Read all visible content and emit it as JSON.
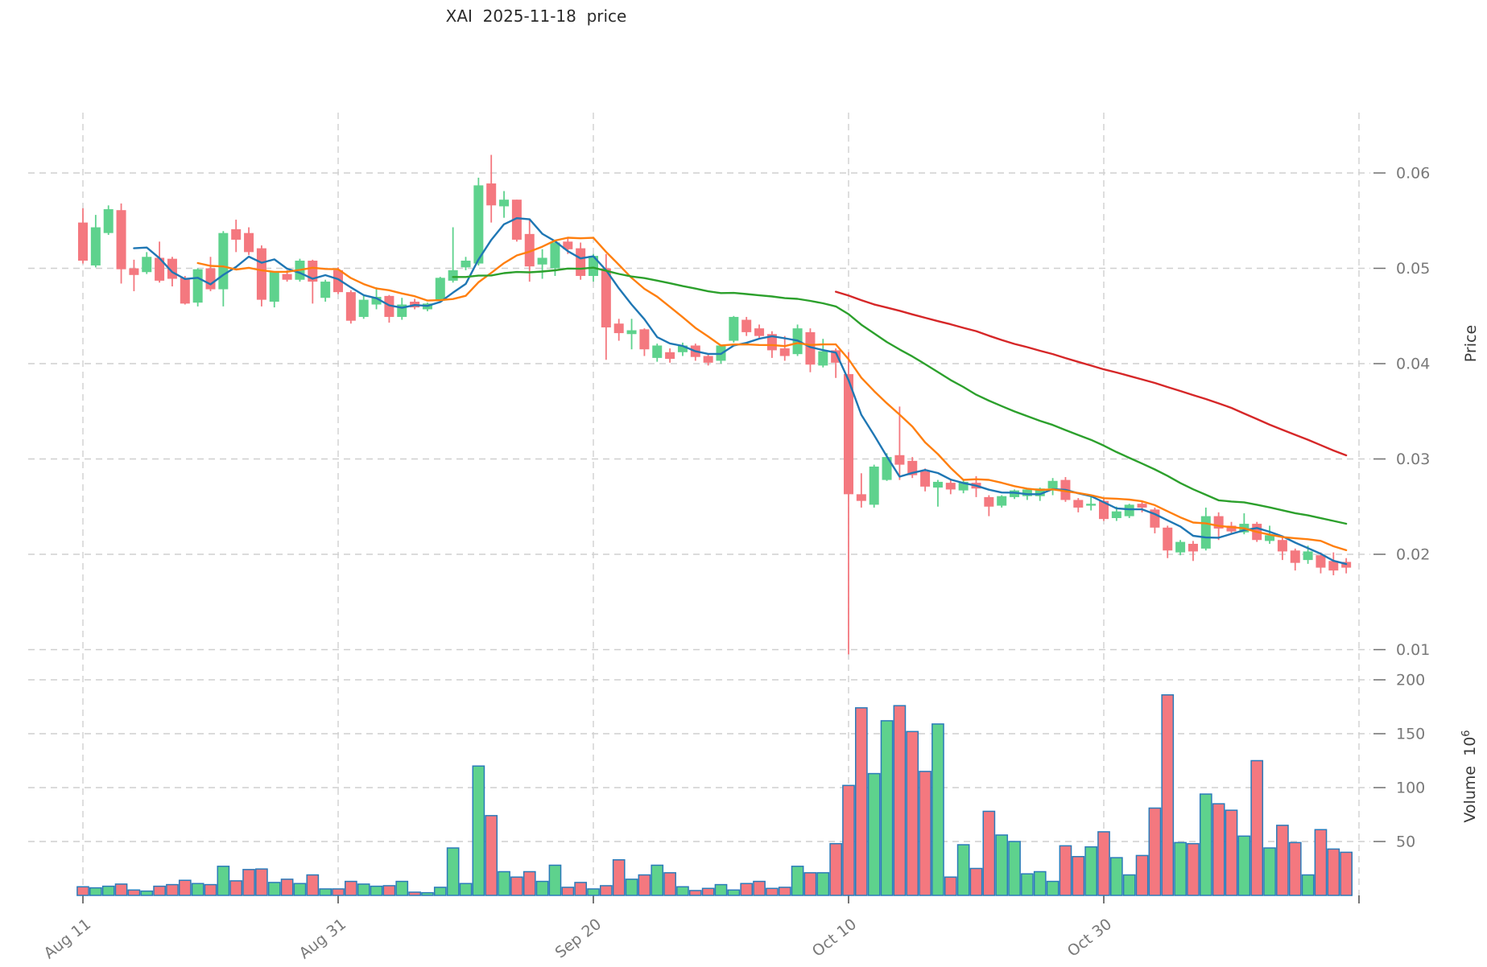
{
  "chart_data": {
    "type": "candlestick",
    "title": "XAI  2025-11-18  price",
    "x_axis": {
      "tick_labels": [
        "Aug 11",
        "Aug 31",
        "Sep 20",
        "Oct 10",
        "Oct 30"
      ],
      "tick_label_indices": [
        0,
        20,
        40,
        60,
        80
      ],
      "gridline_indices": [
        0,
        20,
        40,
        60,
        80,
        100
      ],
      "n_candles": 100,
      "label_rotation_deg": -38
    },
    "price_axis": {
      "label": "Price",
      "ticks": [
        0.06,
        0.05,
        0.04,
        0.03,
        0.02,
        0.01
      ],
      "range": [
        0.0089,
        0.0663
      ],
      "side": "right",
      "grid": true
    },
    "volume_axis": {
      "label_base": "Volume  10",
      "label_exponent": "6",
      "unit": "millions",
      "ticks": [
        200,
        150,
        100,
        50
      ],
      "range": [
        0,
        215
      ],
      "side": "right",
      "grid": true
    },
    "moving_averages": [
      {
        "window": 5,
        "color": "#1f77b4"
      },
      {
        "window": 10,
        "color": "#ff7f0e"
      },
      {
        "window": 30,
        "color": "#2ca02c"
      },
      {
        "window": 60,
        "color": "#d62728"
      }
    ],
    "style": {
      "up_color": "#5ed28d",
      "down_color": "#f4787f",
      "volume_edge_color": "#2b7bba",
      "grid_color": "#cfcfcf",
      "tick_label_color": "#797979",
      "axis_tick_color": "#6f6f6f",
      "title_color": "#2b2b2b",
      "background": "#ffffff"
    },
    "ohlcv_columns": [
      "open",
      "high",
      "low",
      "close",
      "volume_millions"
    ],
    "candles": [
      [
        0.0548,
        0.0563,
        0.0505,
        0.0508,
        8
      ],
      [
        0.0503,
        0.0556,
        0.0501,
        0.0543,
        7
      ],
      [
        0.0537,
        0.0566,
        0.0535,
        0.0562,
        8.5
      ],
      [
        0.0561,
        0.0568,
        0.0484,
        0.0499,
        10.5
      ],
      [
        0.05,
        0.0509,
        0.0476,
        0.0493,
        5
      ],
      [
        0.0496,
        0.0517,
        0.0494,
        0.0512,
        4
      ],
      [
        0.0511,
        0.0528,
        0.0485,
        0.0487,
        8.5
      ],
      [
        0.051,
        0.0512,
        0.0481,
        0.0489,
        10
      ],
      [
        0.049,
        0.0492,
        0.0462,
        0.0463,
        14
      ],
      [
        0.0464,
        0.05,
        0.046,
        0.0499,
        11
      ],
      [
        0.05,
        0.0512,
        0.0476,
        0.0478,
        10
      ],
      [
        0.0478,
        0.0539,
        0.046,
        0.0537,
        27
      ],
      [
        0.0541,
        0.0551,
        0.0517,
        0.053,
        13.5
      ],
      [
        0.0537,
        0.0543,
        0.0514,
        0.0517,
        24
      ],
      [
        0.0521,
        0.0524,
        0.046,
        0.0467,
        24.5
      ],
      [
        0.0465,
        0.0496,
        0.0459,
        0.0496,
        12
      ],
      [
        0.0494,
        0.0498,
        0.0486,
        0.0488,
        15
      ],
      [
        0.0488,
        0.051,
        0.0486,
        0.0508,
        11
      ],
      [
        0.0508,
        0.0509,
        0.0463,
        0.0486,
        19
      ],
      [
        0.0469,
        0.0488,
        0.0465,
        0.0486,
        6
      ],
      [
        0.0498,
        0.0501,
        0.0473,
        0.0475,
        6
      ],
      [
        0.0475,
        0.0477,
        0.0442,
        0.0445,
        13
      ],
      [
        0.0449,
        0.0471,
        0.0447,
        0.0467,
        10.5
      ],
      [
        0.0462,
        0.048,
        0.0457,
        0.047,
        8.5
      ],
      [
        0.0471,
        0.0472,
        0.0443,
        0.0449,
        9
      ],
      [
        0.0449,
        0.0469,
        0.0446,
        0.0462,
        13
      ],
      [
        0.0465,
        0.0468,
        0.0457,
        0.0459,
        3
      ],
      [
        0.0457,
        0.0464,
        0.0455,
        0.0463,
        2.5
      ],
      [
        0.0466,
        0.0491,
        0.0464,
        0.049,
        7.5
      ],
      [
        0.0487,
        0.0543,
        0.0485,
        0.0498,
        44
      ],
      [
        0.0501,
        0.0512,
        0.0498,
        0.0508,
        11
      ],
      [
        0.0505,
        0.0595,
        0.0503,
        0.0587,
        120
      ],
      [
        0.0589,
        0.0619,
        0.0548,
        0.0566,
        74
      ],
      [
        0.0565,
        0.0581,
        0.0553,
        0.0572,
        22
      ],
      [
        0.0572,
        0.0572,
        0.0528,
        0.053,
        17
      ],
      [
        0.0536,
        0.0551,
        0.0486,
        0.0502,
        22
      ],
      [
        0.0504,
        0.052,
        0.0489,
        0.0511,
        13
      ],
      [
        0.05,
        0.0528,
        0.0492,
        0.0527,
        28
      ],
      [
        0.0528,
        0.0532,
        0.0515,
        0.052,
        7.5
      ],
      [
        0.0521,
        0.0527,
        0.0488,
        0.0492,
        12
      ],
      [
        0.0492,
        0.0515,
        0.0486,
        0.0513,
        6
      ],
      [
        0.05,
        0.0515,
        0.0404,
        0.0438,
        9
      ],
      [
        0.0442,
        0.0447,
        0.0424,
        0.0432,
        33
      ],
      [
        0.0431,
        0.0447,
        0.0415,
        0.0435,
        15
      ],
      [
        0.0436,
        0.0437,
        0.0408,
        0.0415,
        19
      ],
      [
        0.0406,
        0.0421,
        0.0402,
        0.0419,
        28
      ],
      [
        0.0412,
        0.0416,
        0.0401,
        0.0405,
        21
      ],
      [
        0.0412,
        0.0422,
        0.0408,
        0.0419,
        8
      ],
      [
        0.0419,
        0.0421,
        0.0403,
        0.0407,
        4.5
      ],
      [
        0.0408,
        0.041,
        0.0398,
        0.0401,
        6.5
      ],
      [
        0.0403,
        0.042,
        0.04,
        0.0419,
        10
      ],
      [
        0.0424,
        0.045,
        0.0422,
        0.0449,
        5
      ],
      [
        0.0446,
        0.0449,
        0.0429,
        0.0433,
        11
      ],
      [
        0.0437,
        0.0441,
        0.0427,
        0.0429,
        13
      ],
      [
        0.0431,
        0.0434,
        0.0406,
        0.0414,
        6.5
      ],
      [
        0.0416,
        0.0429,
        0.0403,
        0.0408,
        7.5
      ],
      [
        0.041,
        0.0441,
        0.0408,
        0.0437,
        27
      ],
      [
        0.0433,
        0.0437,
        0.0391,
        0.0399,
        21
      ],
      [
        0.0398,
        0.0426,
        0.0396,
        0.0413,
        21
      ],
      [
        0.0414,
        0.0416,
        0.0385,
        0.0401,
        48
      ],
      [
        0.0389,
        0.0412,
        0.0095,
        0.0263,
        102
      ],
      [
        0.0263,
        0.0285,
        0.0249,
        0.0256,
        174
      ],
      [
        0.0252,
        0.0294,
        0.0249,
        0.0292,
        113
      ],
      [
        0.0278,
        0.0306,
        0.0277,
        0.0302,
        162
      ],
      [
        0.0304,
        0.0355,
        0.0278,
        0.0294,
        176
      ],
      [
        0.0298,
        0.0302,
        0.028,
        0.0283,
        152
      ],
      [
        0.0287,
        0.029,
        0.0266,
        0.0271,
        115
      ],
      [
        0.027,
        0.0278,
        0.025,
        0.0276,
        159
      ],
      [
        0.0275,
        0.0278,
        0.0263,
        0.0268,
        17
      ],
      [
        0.0267,
        0.0278,
        0.0264,
        0.0276,
        47
      ],
      [
        0.0275,
        0.0282,
        0.026,
        0.0269,
        25
      ],
      [
        0.026,
        0.0262,
        0.024,
        0.025,
        78
      ],
      [
        0.0251,
        0.0262,
        0.0249,
        0.0261,
        56
      ],
      [
        0.026,
        0.0268,
        0.0258,
        0.0267,
        50
      ],
      [
        0.0261,
        0.0269,
        0.0257,
        0.0268,
        20
      ],
      [
        0.0261,
        0.027,
        0.0256,
        0.0269,
        22
      ],
      [
        0.0269,
        0.028,
        0.0262,
        0.0277,
        13
      ],
      [
        0.0278,
        0.0281,
        0.0255,
        0.0257,
        46
      ],
      [
        0.0257,
        0.0259,
        0.0244,
        0.0249,
        36
      ],
      [
        0.0251,
        0.0262,
        0.0246,
        0.0253,
        45
      ],
      [
        0.0256,
        0.0258,
        0.0235,
        0.0237,
        59
      ],
      [
        0.0238,
        0.025,
        0.0235,
        0.0245,
        35
      ],
      [
        0.024,
        0.0253,
        0.0238,
        0.0252,
        19
      ],
      [
        0.0253,
        0.0256,
        0.0244,
        0.0249,
        37
      ],
      [
        0.0247,
        0.0249,
        0.0222,
        0.0228,
        81
      ],
      [
        0.0228,
        0.023,
        0.0196,
        0.0204,
        186
      ],
      [
        0.0202,
        0.0215,
        0.0199,
        0.0213,
        49
      ],
      [
        0.0211,
        0.0214,
        0.0193,
        0.0203,
        48
      ],
      [
        0.0206,
        0.0249,
        0.0204,
        0.024,
        94
      ],
      [
        0.024,
        0.0244,
        0.0215,
        0.0227,
        85
      ],
      [
        0.023,
        0.0234,
        0.0221,
        0.0224,
        79
      ],
      [
        0.0223,
        0.0243,
        0.0221,
        0.0232,
        55
      ],
      [
        0.0232,
        0.0234,
        0.0213,
        0.0215,
        125
      ],
      [
        0.0214,
        0.023,
        0.0211,
        0.022,
        44
      ],
      [
        0.0215,
        0.0218,
        0.0194,
        0.0203,
        65
      ],
      [
        0.0204,
        0.0206,
        0.0183,
        0.0191,
        49
      ],
      [
        0.0194,
        0.0209,
        0.019,
        0.0203,
        19
      ],
      [
        0.0199,
        0.0202,
        0.018,
        0.0186,
        61
      ],
      [
        0.0193,
        0.0202,
        0.0178,
        0.0183,
        43
      ],
      [
        0.0192,
        0.0196,
        0.018,
        0.0186,
        40
      ]
    ]
  }
}
